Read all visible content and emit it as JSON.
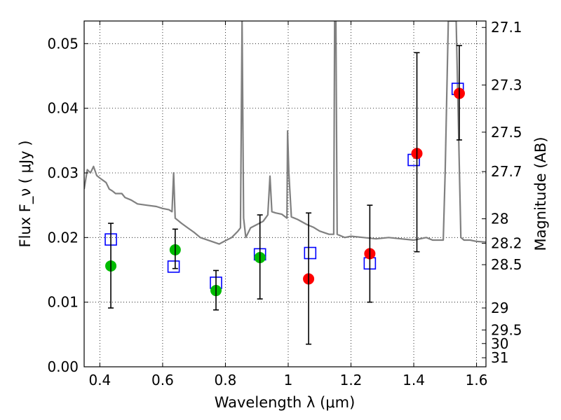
{
  "chart_data": {
    "type": "scatter",
    "xlabel": "Wavelength  λ (μm)",
    "ylabel": "Flux  F_ν  ( μJy )",
    "y2label": "Magnitude (AB)",
    "xlim": [
      0.35,
      1.63
    ],
    "ylim": [
      0.0,
      0.0535
    ],
    "grid": true,
    "x_ticks": [
      0.4,
      0.6,
      0.8,
      1.0,
      1.2,
      1.4,
      1.6
    ],
    "x_tick_labels": [
      "0.4",
      "0.6",
      "0.8",
      "1",
      "1.2",
      "1.4",
      "1.6"
    ],
    "y_ticks": [
      0.0,
      0.01,
      0.02,
      0.03,
      0.04,
      0.05
    ],
    "y_tick_labels": [
      "0.00",
      "0.01",
      "0.02",
      "0.03",
      "0.04",
      "0.05"
    ],
    "y2_ticks": [
      {
        "flux": 0.0525,
        "label": "27.1"
      },
      {
        "flux": 0.0436,
        "label": "27.3"
      },
      {
        "flux": 0.0363,
        "label": "27.5"
      },
      {
        "flux": 0.0302,
        "label": "27.7"
      },
      {
        "flux": 0.0229,
        "label": "28"
      },
      {
        "flux": 0.0191,
        "label": "28.2"
      },
      {
        "flux": 0.0158,
        "label": "28.5"
      },
      {
        "flux": 0.0091,
        "label": "29"
      },
      {
        "flux": 0.0057,
        "label": "29.5"
      },
      {
        "flux": 0.0036,
        "label": "30"
      },
      {
        "flux": 0.0014,
        "label": "31"
      }
    ],
    "series": [
      {
        "kind": "line",
        "color": "#808080",
        "points": [
          [
            0.35,
            0.0275
          ],
          [
            0.36,
            0.0305
          ],
          [
            0.37,
            0.03
          ],
          [
            0.38,
            0.031
          ],
          [
            0.39,
            0.0296
          ],
          [
            0.4,
            0.0292
          ],
          [
            0.42,
            0.0285
          ],
          [
            0.43,
            0.0275
          ],
          [
            0.44,
            0.0272
          ],
          [
            0.45,
            0.0268
          ],
          [
            0.47,
            0.0268
          ],
          [
            0.48,
            0.0262
          ],
          [
            0.5,
            0.0258
          ],
          [
            0.52,
            0.0252
          ],
          [
            0.55,
            0.025
          ],
          [
            0.58,
            0.0248
          ],
          [
            0.6,
            0.0245
          ],
          [
            0.62,
            0.0243
          ],
          [
            0.63,
            0.024
          ],
          [
            0.635,
            0.03
          ],
          [
            0.64,
            0.023
          ],
          [
            0.66,
            0.0222
          ],
          [
            0.68,
            0.0215
          ],
          [
            0.7,
            0.0208
          ],
          [
            0.72,
            0.02
          ],
          [
            0.75,
            0.0195
          ],
          [
            0.78,
            0.019
          ],
          [
            0.8,
            0.0195
          ],
          [
            0.82,
            0.02
          ],
          [
            0.84,
            0.021
          ],
          [
            0.848,
            0.0215
          ],
          [
            0.853,
            0.0535
          ],
          [
            0.858,
            0.023
          ],
          [
            0.865,
            0.02
          ],
          [
            0.88,
            0.0215
          ],
          [
            0.9,
            0.022
          ],
          [
            0.92,
            0.0225
          ],
          [
            0.935,
            0.0235
          ],
          [
            0.942,
            0.0295
          ],
          [
            0.948,
            0.024
          ],
          [
            0.96,
            0.0238
          ],
          [
            0.98,
            0.0236
          ],
          [
            0.996,
            0.023
          ],
          [
            0.998,
            0.0365
          ],
          [
            1.002,
            0.03
          ],
          [
            1.01,
            0.0232
          ],
          [
            1.03,
            0.0228
          ],
          [
            1.06,
            0.022
          ],
          [
            1.08,
            0.0216
          ],
          [
            1.1,
            0.021
          ],
          [
            1.13,
            0.0205
          ],
          [
            1.145,
            0.0205
          ],
          [
            1.148,
            0.0535
          ],
          [
            1.152,
            0.0535
          ],
          [
            1.156,
            0.0205
          ],
          [
            1.18,
            0.02
          ],
          [
            1.2,
            0.0202
          ],
          [
            1.24,
            0.02
          ],
          [
            1.28,
            0.0198
          ],
          [
            1.32,
            0.02
          ],
          [
            1.36,
            0.0198
          ],
          [
            1.4,
            0.0196
          ],
          [
            1.44,
            0.02
          ],
          [
            1.46,
            0.0196
          ],
          [
            1.48,
            0.0196
          ],
          [
            1.494,
            0.0196
          ],
          [
            1.5,
            0.03
          ],
          [
            1.51,
            0.0535
          ],
          [
            1.535,
            0.0535
          ],
          [
            1.55,
            0.02
          ],
          [
            1.56,
            0.0196
          ],
          [
            1.58,
            0.0196
          ],
          [
            1.6,
            0.0194
          ],
          [
            1.63,
            0.0193
          ]
        ]
      },
      {
        "kind": "markers",
        "marker": "square",
        "color": "#0000ff",
        "points": [
          [
            0.435,
            0.0197
          ],
          [
            0.635,
            0.0155
          ],
          [
            0.77,
            0.013
          ],
          [
            0.91,
            0.0174
          ],
          [
            1.07,
            0.0176
          ],
          [
            1.26,
            0.016
          ],
          [
            1.4,
            0.032
          ],
          [
            1.54,
            0.043
          ]
        ]
      },
      {
        "kind": "markers",
        "marker": "circle",
        "color": "#00bb00",
        "points": [
          [
            0.435,
            0.0156
          ],
          [
            0.64,
            0.0181
          ],
          [
            0.77,
            0.0118
          ],
          [
            0.91,
            0.0169
          ]
        ]
      },
      {
        "kind": "markers",
        "marker": "circle",
        "color": "#ff0000",
        "points": [
          [
            1.065,
            0.0136
          ],
          [
            1.26,
            0.0175
          ],
          [
            1.41,
            0.033
          ],
          [
            1.545,
            0.0423
          ]
        ]
      },
      {
        "kind": "errorbars",
        "color": "#000000",
        "bars": [
          {
            "x": 0.435,
            "low": 0.0091,
            "high": 0.0222
          },
          {
            "x": 0.64,
            "low": 0.0152,
            "high": 0.0213
          },
          {
            "x": 0.77,
            "low": 0.0088,
            "high": 0.0149
          },
          {
            "x": 0.91,
            "low": 0.0105,
            "high": 0.0235
          },
          {
            "x": 1.065,
            "low": 0.0035,
            "high": 0.0238
          },
          {
            "x": 1.26,
            "low": 0.01,
            "high": 0.025
          },
          {
            "x": 1.41,
            "low": 0.0178,
            "high": 0.0486
          },
          {
            "x": 1.545,
            "low": 0.0351,
            "high": 0.0497
          }
        ]
      }
    ]
  }
}
